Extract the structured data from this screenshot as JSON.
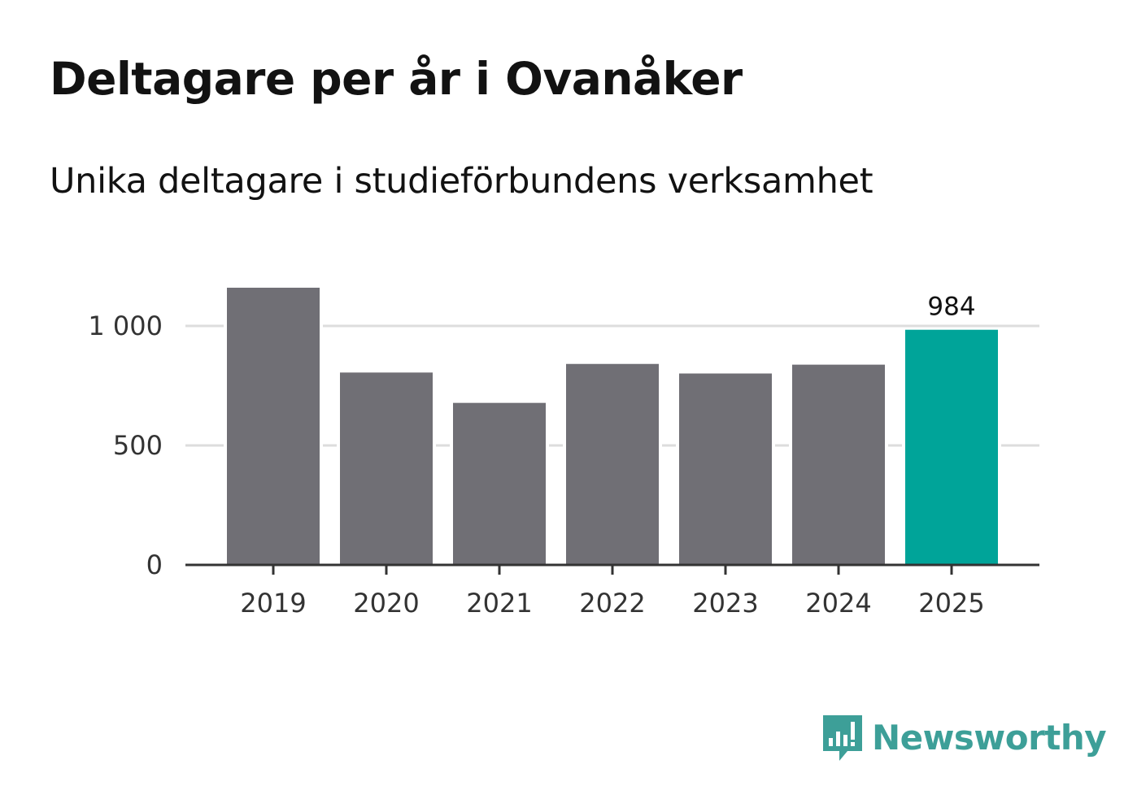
{
  "title": "Deltagare per år i Ovanåker",
  "subtitle": "Unika deltagare i studieförbundens verksamhet",
  "brand": {
    "name": "Newsworthy",
    "color": "#3d9f98",
    "icon": "newsworthy-logo-icon"
  },
  "colors": {
    "bar": "#706f75",
    "highlight": "#00a499",
    "grid": "#dddddd",
    "axis": "#333333"
  },
  "chart_data": {
    "type": "bar",
    "title": "Deltagare per år i Ovanåker",
    "subtitle": "Unika deltagare i studieförbundens verksamhet",
    "xlabel": "",
    "ylabel": "",
    "categories": [
      "2019",
      "2020",
      "2021",
      "2022",
      "2023",
      "2024",
      "2025"
    ],
    "values": [
      1160,
      805,
      678,
      841,
      801,
      838,
      984
    ],
    "highlight_index": 6,
    "data_labels": [
      {
        "index": 6,
        "text": "984"
      }
    ],
    "ylim": [
      0,
      1200
    ],
    "yticks": [
      0,
      500,
      1000
    ],
    "ytick_labels": [
      "0",
      "500",
      "1 000"
    ],
    "grid": true,
    "legend": "none"
  }
}
